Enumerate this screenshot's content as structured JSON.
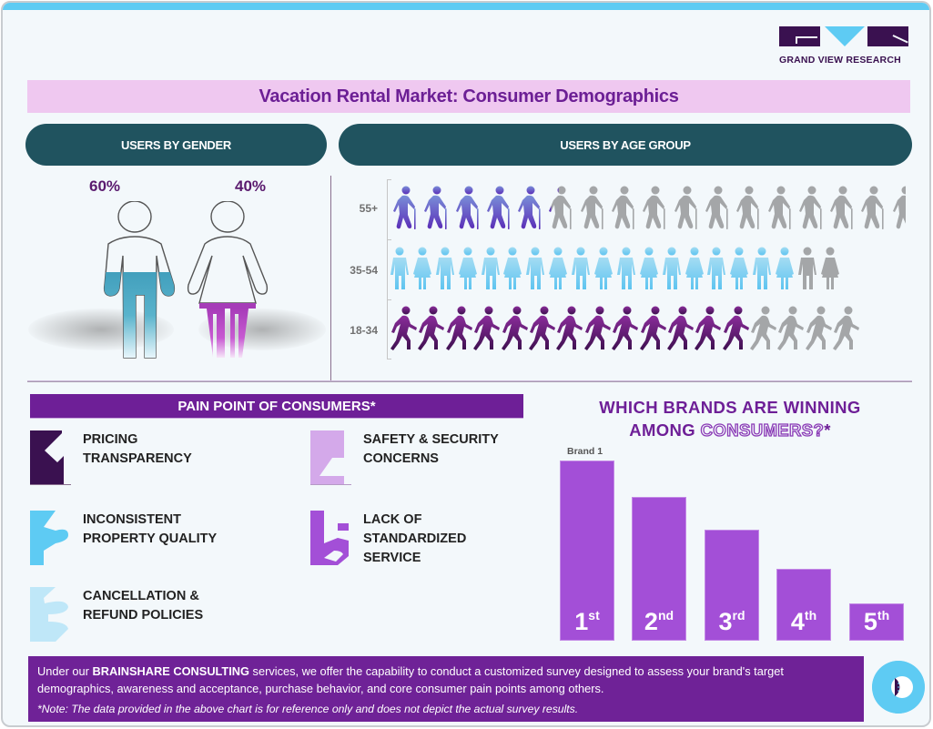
{
  "brand": {
    "logo_text": "GRAND VIEW RESEARCH",
    "colors": {
      "dark_purple": "#3a1150",
      "cyan": "#5ecbf3",
      "purple": "#6e1f97",
      "teal": "#20535f",
      "pink": "#efc8f0",
      "bar": "#a34fd7"
    }
  },
  "header": {
    "title": "Vacation Rental Market: Consumer Demographics"
  },
  "gender": {
    "heading": "USERS BY GENDER",
    "male": {
      "label": "Male",
      "percent": "60%",
      "icon": "male-person-icon"
    },
    "female": {
      "label": "Female",
      "percent": "40%",
      "icon": "female-person-icon"
    }
  },
  "age": {
    "heading": "USERS BY AGE GROUP",
    "rows": [
      {
        "label": "55+",
        "icon": "elderly-with-cane-icon",
        "filled": 5.1,
        "total": 16.5,
        "color": "#6a4fcf"
      },
      {
        "label": "35-54",
        "icon": "couple-holding-hands-icon",
        "filled": 18,
        "total": 20,
        "color": "#6cc9f0"
      },
      {
        "label": "18-34",
        "icon": "walking-person-icon",
        "filled": 13,
        "total": 16.5,
        "color": "#5c1a6b"
      }
    ]
  },
  "pain_points": {
    "heading": "PAIN POINT OF CONSUMERS*",
    "items": [
      {
        "number": "1",
        "line1": "PRICING",
        "line2": "TRANSPARENCY",
        "line3": "",
        "color": "#3a1150"
      },
      {
        "number": "2",
        "line1": "INCONSISTENT",
        "line2": "PROPERTY QUALITY",
        "line3": "",
        "color": "#5ecbf3"
      },
      {
        "number": "3",
        "line1": "CANCELLATION &",
        "line2": "REFUND POLICIES",
        "line3": "",
        "color": "#bfe7f8"
      },
      {
        "number": "4",
        "line1": "SAFETY & SECURITY",
        "line2": "CONCERNS",
        "line3": "",
        "color": "#d4a9ea"
      },
      {
        "number": "5",
        "line1": "LACK OF",
        "line2": "STANDARDIZED",
        "line3": "SERVICE",
        "color": "#a34fd7"
      }
    ]
  },
  "brands": {
    "title_line1": "WHICH BRANDS ARE WINNING",
    "title_line2_solid": "AMONG ",
    "title_line2_outline": "CONSUMERS?",
    "title_line2_star": "*",
    "top_label": "Brand 1"
  },
  "chart_data": {
    "type": "bar",
    "title": "WHICH BRANDS ARE WINNING AMONG CONSUMERS?*",
    "categories": [
      "1st",
      "2nd",
      "3rd",
      "4th",
      "5th"
    ],
    "category_numbers": [
      "1",
      "2",
      "3",
      "4",
      "5"
    ],
    "category_suffixes": [
      "st",
      "nd",
      "rd",
      "th",
      "th"
    ],
    "values": [
      198,
      158,
      122,
      79,
      41
    ],
    "annotations": [
      {
        "category": "1st",
        "text": "Brand 1"
      }
    ],
    "xlabel": "",
    "ylabel": "",
    "grid": false,
    "legend": "none"
  },
  "footer": {
    "text_pre": "Under our ",
    "text_strong": "BRAINSHARE CONSULTING",
    "text_post": " services, we offer the capability to conduct a customized survey designed to assess your brand's target demographics, awareness and acceptance, purchase behavior, and core consumer pain points among others.",
    "note": "*Note: The data provided in the above chart is for reference only and does not depict the actual survey results.",
    "badge_icon": "brainshare-logo-icon"
  }
}
